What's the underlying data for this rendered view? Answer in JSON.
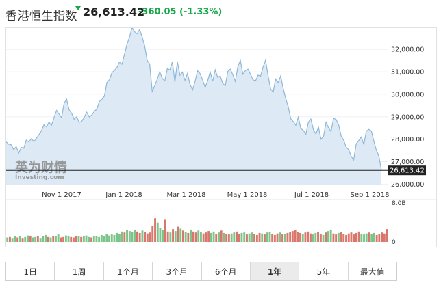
{
  "header": {
    "index_name": "香港恒生指数",
    "price": "26,613.42",
    "change": "-360.05",
    "change_pct": "(-1.33%)",
    "direction_icon": "down-arrow-icon",
    "down_color": "#19a74a"
  },
  "watermark": {
    "brand_cn": "英为财情",
    "brand_en": "Investing.com"
  },
  "chart_data": {
    "type": "area",
    "x_ticks": [
      "Nov 1 2017",
      "Jan 1 2018",
      "Mar 1 2018",
      "May 1 2018",
      "Jul 1 2018",
      "Sep 1 2018"
    ],
    "y_ticks": [
      "32,000.00",
      "31,000.00",
      "30,000.00",
      "29,000.00",
      "28,000.00",
      "27,000.00",
      "26,000.00"
    ],
    "ylim": [
      25950,
      32950
    ],
    "current_value": 26613.42,
    "current_label": "26,613.42",
    "line_color": "#8db8d8",
    "fill_color": "#dde9f4",
    "series": [
      {
        "values": [
          27880,
          27780,
          27750,
          27540,
          27670,
          27390,
          27640,
          27600,
          27960,
          27880,
          28020,
          27890,
          28040,
          28200,
          28370,
          28640,
          28550,
          28760,
          28620,
          28960,
          29280,
          29120,
          28960,
          29600,
          29780,
          29310,
          29160,
          28890,
          29000,
          28740,
          28800,
          28980,
          29200,
          28990,
          29080,
          29240,
          29340,
          29680,
          29770,
          29920,
          30520,
          30650,
          30960,
          31060,
          31200,
          31430,
          31340,
          31800,
          32230,
          32560,
          32970,
          32780,
          32690,
          32880,
          32550,
          32150,
          31500,
          31350,
          30130,
          30380,
          30680,
          31000,
          30710,
          30600,
          31150,
          31080,
          31450,
          30540,
          31450,
          30850,
          30980,
          30620,
          30930,
          30440,
          30200,
          30560,
          31050,
          30920,
          30640,
          30300,
          30600,
          30990,
          30580,
          31080,
          30750,
          30820,
          30480,
          30390,
          31020,
          31120,
          30870,
          30570,
          31250,
          31510,
          30890,
          31050,
          31120,
          30890,
          30650,
          30590,
          30850,
          30810,
          31210,
          31520,
          30830,
          30240,
          30100,
          30680,
          30520,
          30820,
          30250,
          29820,
          29450,
          28910,
          28780,
          28620,
          28980,
          28480,
          28390,
          28220,
          28760,
          28900,
          28420,
          28230,
          28540,
          28000,
          28120,
          28750,
          28510,
          28340,
          28930,
          28880,
          28640,
          28140,
          27960,
          27650,
          27530,
          27240,
          27080,
          27800,
          27940,
          28100,
          27760,
          28350,
          28440,
          28370,
          27900,
          27510,
          27240,
          26613.42
        ]
      }
    ],
    "volume_max_label": "8.0B",
    "volume_zero_label": "0",
    "volume_up_color": "#7dc48a",
    "volume_down_color": "#d9776c",
    "volumes": [
      0.9,
      1.0,
      0.8,
      1.1,
      0.9,
      1.2,
      0.8,
      1.0,
      1.3,
      1.1,
      0.9,
      1.0,
      1.2,
      0.8,
      1.1,
      1.4,
      1.0,
      0.9,
      1.2,
      1.1,
      1.5,
      0.9,
      1.0,
      1.3,
      1.2,
      1.0,
      0.9,
      1.1,
      1.2,
      1.0,
      1.1,
      1.3,
      1.0,
      0.9,
      1.2,
      1.1,
      1.0,
      1.4,
      1.2,
      1.6,
      1.3,
      1.5,
      1.4,
      1.8,
      1.6,
      2.1,
      1.9,
      2.4,
      2.2,
      2.0,
      2.5,
      2.1,
      1.8,
      2.3,
      2.0,
      1.7,
      1.9,
      3.2,
      4.8,
      3.9,
      2.8,
      2.4,
      4.5,
      2.1,
      1.9,
      2.6,
      2.2,
      3.1,
      2.7,
      2.3,
      2.0,
      1.8,
      2.5,
      2.1,
      1.9,
      2.3,
      2.0,
      1.7,
      1.9,
      2.2,
      1.8,
      2.1,
      1.6,
      1.9,
      2.3,
      1.8,
      1.6,
      1.5,
      1.7,
      1.9,
      2.1,
      1.6,
      1.8,
      1.9,
      1.5,
      1.7,
      1.9,
      1.6,
      1.4,
      1.8,
      1.7,
      1.5,
      1.9,
      2.0,
      1.6,
      1.4,
      1.7,
      1.9,
      1.5,
      1.6,
      1.8,
      2.0,
      2.2,
      2.4,
      2.0,
      1.8,
      1.6,
      1.9,
      2.1,
      1.7,
      1.5,
      1.8,
      2.0,
      1.6,
      1.4,
      1.9,
      2.2,
      2.5,
      1.7,
      1.5,
      1.8,
      2.0,
      1.6,
      1.4,
      1.7,
      1.9,
      1.5,
      1.8,
      2.1,
      1.6,
      1.5,
      1.7,
      1.9,
      1.6,
      1.8,
      1.4,
      1.6,
      1.9,
      1.7,
      2.6
    ],
    "volume_up": [
      1,
      0,
      1,
      1,
      0,
      1,
      0,
      1,
      1,
      0,
      1,
      1,
      0,
      1,
      1,
      1,
      0,
      1,
      0,
      1,
      1,
      0,
      0,
      1,
      1,
      0,
      0,
      0,
      1,
      0,
      1,
      1,
      1,
      0,
      1,
      1,
      1,
      1,
      1,
      1,
      1,
      1,
      1,
      1,
      1,
      1,
      0,
      1,
      1,
      1,
      1,
      0,
      0,
      1,
      0,
      0,
      0,
      0,
      0,
      1,
      1,
      1,
      0,
      0,
      1,
      0,
      1,
      0,
      1,
      0,
      1,
      0,
      1,
      0,
      0,
      1,
      1,
      0,
      0,
      0,
      1,
      1,
      0,
      1,
      0,
      1,
      0,
      0,
      1,
      1,
      0,
      0,
      1,
      1,
      0,
      1,
      1,
      0,
      0,
      0,
      1,
      0,
      1,
      1,
      0,
      0,
      0,
      1,
      0,
      1,
      0,
      0,
      0,
      0,
      0,
      0,
      1,
      0,
      0,
      0,
      1,
      1,
      0,
      0,
      1,
      0,
      1,
      1,
      0,
      0,
      1,
      0,
      0,
      0,
      0,
      0,
      0,
      0,
      0,
      1,
      1,
      1,
      0,
      1,
      1,
      0,
      0,
      0,
      0,
      0
    ]
  },
  "range_buttons": [
    {
      "label": "1日",
      "active": false
    },
    {
      "label": "1周",
      "active": false
    },
    {
      "label": "1个月",
      "active": false
    },
    {
      "label": "3个月",
      "active": false
    },
    {
      "label": "6个月",
      "active": false
    },
    {
      "label": "1年",
      "active": true
    },
    {
      "label": "5年",
      "active": false
    },
    {
      "label": "最大值",
      "active": false
    }
  ]
}
